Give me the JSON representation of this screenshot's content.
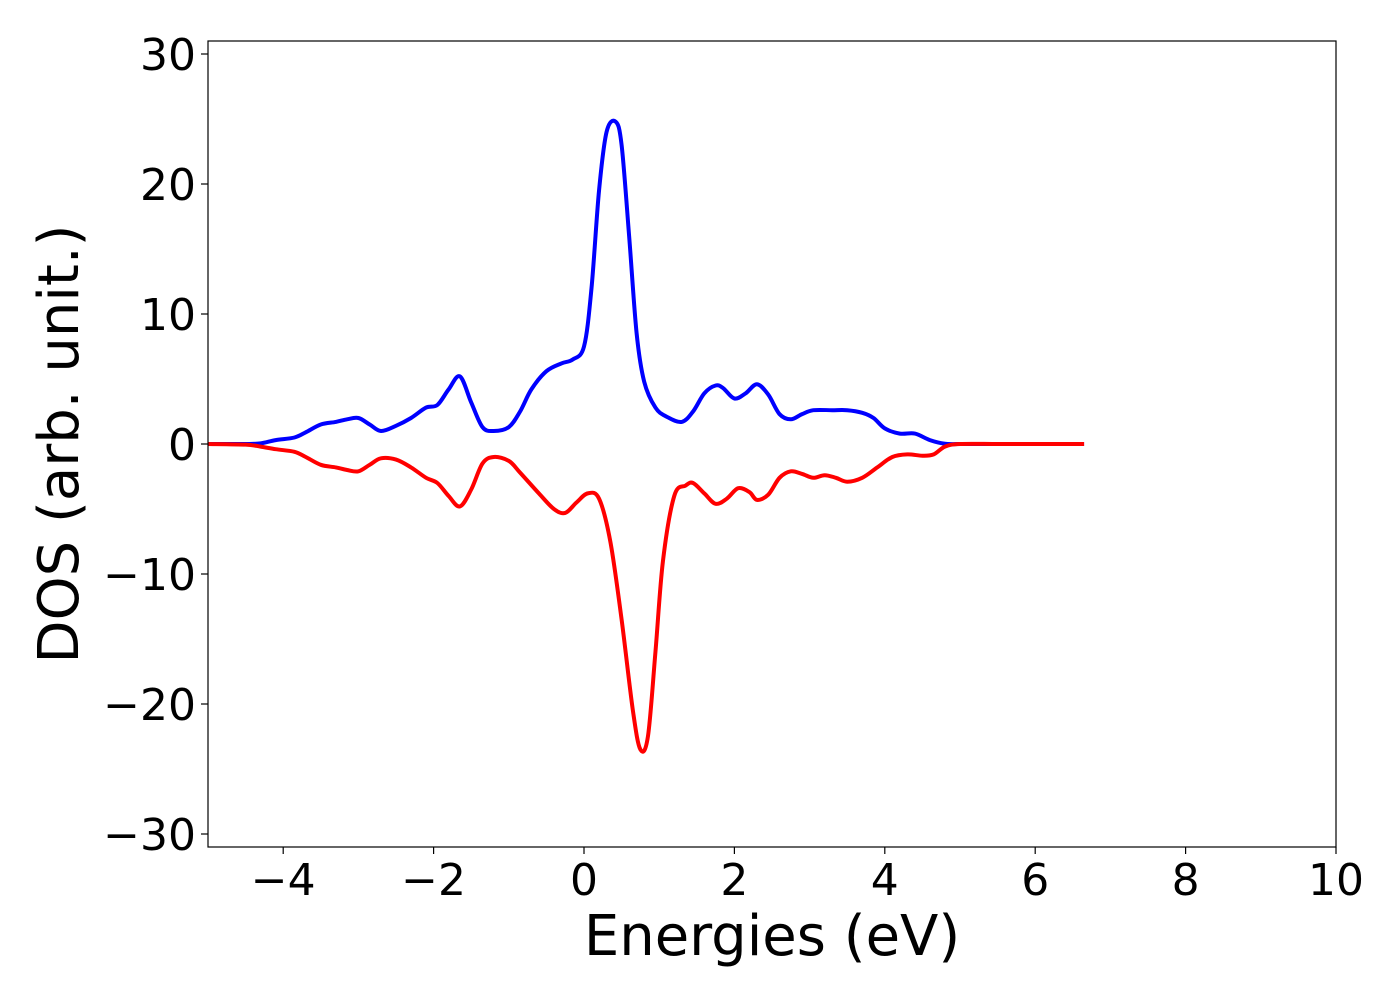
{
  "chart_data": {
    "type": "line",
    "title": "",
    "xlabel": "Energies (eV)",
    "ylabel": "DOS (arb. unit.)",
    "xlim": [
      -5,
      10
    ],
    "ylim": [
      -31,
      31
    ],
    "xticks": [
      -4,
      -2,
      0,
      2,
      4,
      6,
      8,
      10
    ],
    "xtick_labels": [
      "−4",
      "−2",
      "0",
      "2",
      "4",
      "6",
      "8",
      "10"
    ],
    "yticks": [
      30,
      20,
      10,
      0,
      -10,
      -20,
      -30
    ],
    "ytick_labels": [
      "30",
      "20",
      "10",
      "0",
      "−10",
      "−20",
      "−30"
    ],
    "grid": false,
    "legend": "none",
    "series": [
      {
        "color": "#0000ff",
        "x": [
          -5.0,
          -4.5,
          -4.3,
          -4.1,
          -3.85,
          -3.7,
          -3.5,
          -3.3,
          -3.15,
          -3.0,
          -2.85,
          -2.7,
          -2.5,
          -2.3,
          -2.1,
          -1.95,
          -1.8,
          -1.65,
          -1.5,
          -1.35,
          -1.2,
          -1.0,
          -0.85,
          -0.7,
          -0.5,
          -0.3,
          -0.15,
          0.0,
          0.1,
          0.2,
          0.3,
          0.42,
          0.5,
          0.6,
          0.7,
          0.8,
          0.95,
          1.1,
          1.3,
          1.45,
          1.6,
          1.75,
          1.85,
          2.0,
          2.15,
          2.3,
          2.45,
          2.6,
          2.75,
          2.9,
          3.05,
          3.3,
          3.5,
          3.7,
          3.85,
          4.0,
          4.2,
          4.4,
          4.6,
          4.8,
          5.0,
          5.5,
          6.0,
          6.65
        ],
        "y": [
          0,
          0,
          0.05,
          0.3,
          0.5,
          0.9,
          1.5,
          1.7,
          1.9,
          2.0,
          1.5,
          1.0,
          1.4,
          2.0,
          2.8,
          3.0,
          4.2,
          5.2,
          3.2,
          1.3,
          1.0,
          1.3,
          2.5,
          4.2,
          5.6,
          6.2,
          6.5,
          7.5,
          12.0,
          19.5,
          24.0,
          24.8,
          23.0,
          16.0,
          8.5,
          4.8,
          2.8,
          2.1,
          1.7,
          2.5,
          3.9,
          4.5,
          4.3,
          3.5,
          3.9,
          4.6,
          3.8,
          2.3,
          1.9,
          2.3,
          2.6,
          2.6,
          2.6,
          2.4,
          2.0,
          1.2,
          0.8,
          0.8,
          0.3,
          0.02,
          0,
          0,
          0,
          0
        ]
      },
      {
        "color": "#ff0000",
        "x": [
          -5.0,
          -4.5,
          -4.3,
          -4.1,
          -3.85,
          -3.7,
          -3.5,
          -3.3,
          -3.15,
          -3.0,
          -2.85,
          -2.7,
          -2.5,
          -2.3,
          -2.1,
          -1.95,
          -1.8,
          -1.65,
          -1.5,
          -1.35,
          -1.2,
          -1.0,
          -0.85,
          -0.6,
          -0.4,
          -0.25,
          -0.1,
          0.05,
          0.2,
          0.35,
          0.5,
          0.65,
          0.75,
          0.85,
          0.95,
          1.05,
          1.2,
          1.35,
          1.45,
          1.6,
          1.75,
          1.9,
          2.05,
          2.2,
          2.3,
          2.45,
          2.6,
          2.75,
          2.9,
          3.05,
          3.2,
          3.35,
          3.5,
          3.7,
          3.9,
          4.1,
          4.3,
          4.5,
          4.65,
          4.8,
          5.0,
          5.5,
          6.0,
          6.65
        ],
        "y": [
          0,
          -0.05,
          -0.2,
          -0.4,
          -0.6,
          -1.0,
          -1.6,
          -1.8,
          -2.0,
          -2.1,
          -1.6,
          -1.1,
          -1.2,
          -1.8,
          -2.6,
          -3.0,
          -4.0,
          -4.8,
          -3.5,
          -1.5,
          -1.0,
          -1.3,
          -2.2,
          -3.8,
          -5.0,
          -5.3,
          -4.5,
          -3.8,
          -4.2,
          -7.5,
          -13.5,
          -20.5,
          -23.5,
          -22.5,
          -16.0,
          -9.0,
          -4.0,
          -3.2,
          -3.0,
          -3.8,
          -4.6,
          -4.2,
          -3.4,
          -3.7,
          -4.3,
          -3.9,
          -2.6,
          -2.1,
          -2.3,
          -2.6,
          -2.4,
          -2.6,
          -2.9,
          -2.6,
          -1.8,
          -1.0,
          -0.8,
          -0.9,
          -0.8,
          -0.2,
          0,
          0,
          0,
          0
        ]
      }
    ]
  }
}
